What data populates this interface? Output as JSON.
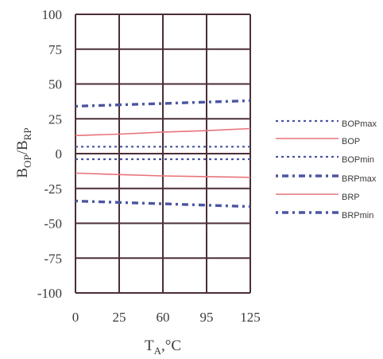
{
  "chart_data": {
    "type": "line",
    "xlabel_main": "T",
    "xlabel_sub": "A",
    "xlabel_rest": ",°C",
    "ylabel_b1": "B",
    "ylabel_s1": "OP",
    "ylabel_slash": "/B",
    "ylabel_s2": "RP",
    "x_ticks": [
      "0",
      "25",
      "60",
      "95",
      "125"
    ],
    "y_ticks": [
      "100",
      "75",
      "50",
      "25",
      "0",
      "-25",
      "-50",
      "-75",
      "-100"
    ],
    "ylim": [
      -100,
      100
    ],
    "grid": true,
    "legend_position": "right",
    "series": [
      {
        "name": "BOPmax",
        "style": "dash-small",
        "color": "#4a55a2",
        "x": [
          0,
          25,
          60,
          95,
          125
        ],
        "y": [
          5,
          5,
          5,
          5,
          5
        ]
      },
      {
        "name": "BOP",
        "style": "solid",
        "color": "#e8737a",
        "x": [
          0,
          25,
          60,
          95,
          125
        ],
        "y": [
          13,
          14,
          15.5,
          16.5,
          18
        ]
      },
      {
        "name": "BOPmin",
        "style": "dash-small",
        "color": "#4a55a2",
        "x": [
          0,
          25,
          60,
          95,
          125
        ],
        "y": [
          -4,
          -4,
          -4,
          -4,
          -4
        ]
      },
      {
        "name": "BRPmax",
        "style": "dash-dot-heavy",
        "color": "#4a55a2",
        "x": [
          0,
          25,
          60,
          95,
          125
        ],
        "y": [
          34,
          35,
          36,
          37,
          38
        ]
      },
      {
        "name": "BRP",
        "style": "solid",
        "color": "#e8737a",
        "x": [
          0,
          25,
          60,
          95,
          125
        ],
        "y": [
          -14,
          -15,
          -16,
          -16.5,
          -17
        ]
      },
      {
        "name": "BRPmin",
        "style": "dash-dot-heavy",
        "color": "#4a55a2",
        "x": [
          0,
          25,
          60,
          95,
          125
        ],
        "y": [
          -34,
          -35,
          -36,
          -37,
          -38
        ]
      }
    ]
  }
}
